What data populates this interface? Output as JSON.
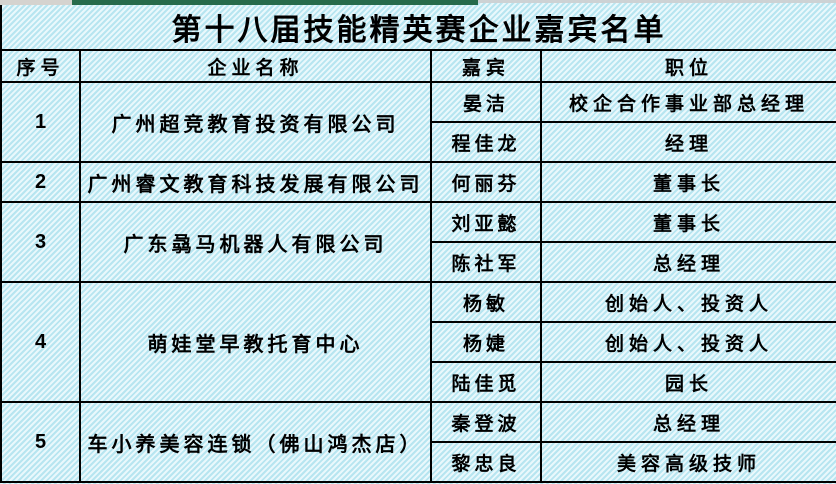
{
  "title": "第十八届技能精英赛企业嘉宾名单",
  "top_strip": {
    "left_color": "#d5d3cf",
    "green_color": "#266b4b",
    "right_color": "#cdd2d4"
  },
  "colors": {
    "hatch_base": "#b7e5f0",
    "hatch_line": "#e9f8fc",
    "grid_border": "#000000",
    "text": "#000000",
    "accent_green": "#266b4b"
  },
  "table": {
    "headers": [
      "序号",
      "企业名称",
      "嘉宾",
      "职位"
    ],
    "groups": [
      {
        "no": "1",
        "company": "广州超竞教育投资有限公司",
        "guests": [
          {
            "name": "晏洁",
            "position": "校企合作事业部总经理"
          },
          {
            "name": "程佳龙",
            "position": "经理"
          }
        ]
      },
      {
        "no": "2",
        "company": "广州睿文教育科技发展有限公司",
        "guests": [
          {
            "name": "何丽芬",
            "position": "董事长"
          }
        ]
      },
      {
        "no": "3",
        "company": "广东骉马机器人有限公司",
        "guests": [
          {
            "name": "刘亚懿",
            "position": "董事长"
          },
          {
            "name": "陈社军",
            "position": "总经理"
          }
        ]
      },
      {
        "no": "4",
        "company": "萌娃堂早教托育中心",
        "guests": [
          {
            "name": "杨敏",
            "position": "创始人、投资人"
          },
          {
            "name": "杨婕",
            "position": "创始人、投资人"
          },
          {
            "name": "陆佳觅",
            "position": "园长"
          }
        ]
      },
      {
        "no": "5",
        "company": "车小养美容连锁（佛山鸿杰店）",
        "guests": [
          {
            "name": "秦登波",
            "position": "总经理"
          },
          {
            "name": "黎忠良",
            "position": "美容高级技师"
          }
        ]
      }
    ]
  }
}
